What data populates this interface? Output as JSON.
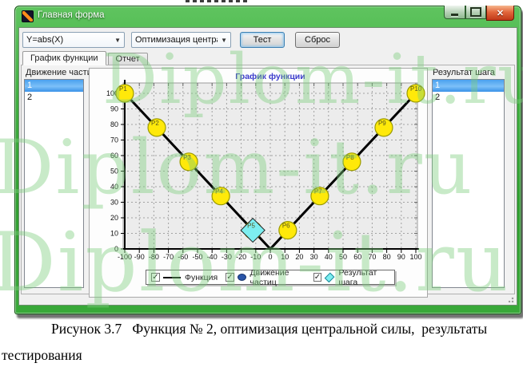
{
  "window": {
    "title": "Главная форма"
  },
  "toolbar": {
    "function_value": "Y=abs(X)",
    "method_value": "Оптимизация центральной си",
    "test_label": "Тест",
    "reset_label": "Сброс"
  },
  "tabs": [
    {
      "label": "График функции",
      "active": true
    },
    {
      "label": "Отчет",
      "active": false
    }
  ],
  "left_panel": {
    "title": "Движение частиц",
    "items": [
      "1",
      "2"
    ],
    "selected_index": 0
  },
  "right_panel": {
    "title": "Результат шага",
    "items": [
      "1",
      "2"
    ],
    "selected_index": 0
  },
  "chart_data": {
    "type": "line",
    "title": "График функции",
    "title_color": "#3c3ccc",
    "xlabel": "",
    "ylabel": "",
    "xlim": [
      -100,
      100
    ],
    "ylim": [
      0,
      100
    ],
    "grid": true,
    "x_ticks": [
      -100,
      -90,
      -80,
      -70,
      -60,
      -50,
      -40,
      -30,
      -20,
      -10,
      0,
      10,
      20,
      30,
      40,
      50,
      60,
      70,
      80,
      90,
      100
    ],
    "y_ticks": [
      0,
      10,
      20,
      30,
      40,
      50,
      60,
      70,
      80,
      90,
      100
    ],
    "series": [
      {
        "name": "Функция",
        "type": "line",
        "color": "#000000",
        "points": [
          [
            -100,
            100
          ],
          [
            0,
            0
          ],
          [
            100,
            100
          ]
        ]
      },
      {
        "name": "Движение частиц",
        "type": "particles",
        "fill": "#ffe90a",
        "border": "#9a9a00",
        "points": [
          {
            "label": "P1",
            "x": -100,
            "y": 100
          },
          {
            "label": "P2",
            "x": -78,
            "y": 78
          },
          {
            "label": "P3",
            "x": -56,
            "y": 56
          },
          {
            "label": "P4",
            "x": -34,
            "y": 34
          },
          {
            "label": "P5",
            "x": -12,
            "y": 12
          },
          {
            "label": "P6",
            "x": 12,
            "y": 12
          },
          {
            "label": "P7",
            "x": 34,
            "y": 34
          },
          {
            "label": "P8",
            "x": 56,
            "y": 56
          },
          {
            "label": "P9",
            "x": 78,
            "y": 78
          },
          {
            "label": "P10",
            "x": 100,
            "y": 100
          }
        ]
      },
      {
        "name": "Результат шага",
        "type": "diamond",
        "fill": "#7deef0",
        "border": "#222222",
        "points": [
          {
            "x": -12,
            "y": 12
          }
        ]
      }
    ],
    "legend": [
      {
        "label": "Функция",
        "checked": true,
        "marker": "line"
      },
      {
        "label": "Движение частиц",
        "checked": true,
        "marker": "ellipse"
      },
      {
        "label": "Результат шага",
        "checked": true,
        "marker": "diamond"
      }
    ],
    "legend_position": "bottom"
  },
  "caption": "Рисунок 3.7   Функция № 2, оптимизация центральной силы,  результаты тестирования",
  "watermark": {
    "text": "Diplom-it.ru",
    "color": "#7dc87d"
  },
  "check_glyph": "✓"
}
